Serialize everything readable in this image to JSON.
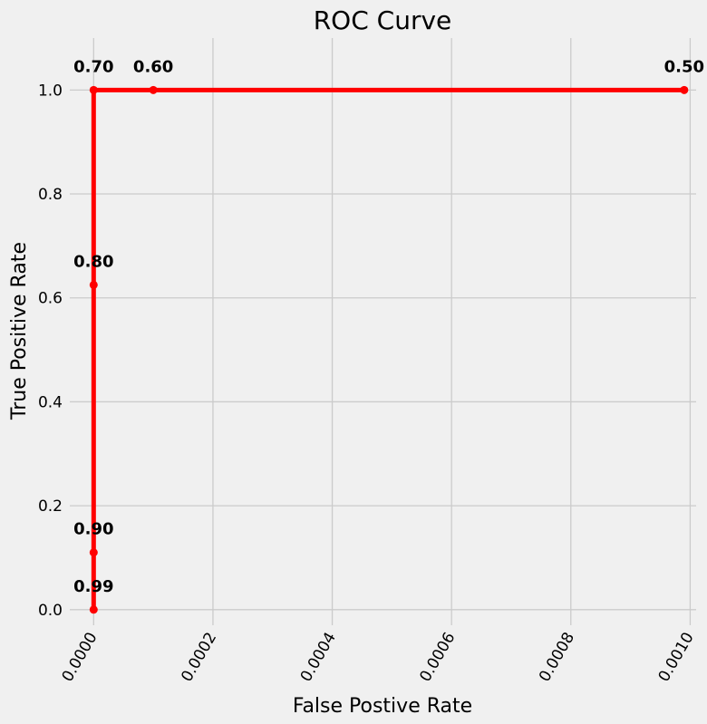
{
  "chart_data": {
    "type": "line",
    "title": "ROC Curve",
    "xlabel": "False Postive Rate",
    "ylabel": "True Positive Rate",
    "xlim": [
      -4e-05,
      0.00101
    ],
    "ylim": [
      -0.03,
      1.1
    ],
    "x_ticks": [
      0.0,
      0.0002,
      0.0004,
      0.0006,
      0.0008,
      0.001
    ],
    "x_tick_labels": [
      "0.0000",
      "0.0002",
      "0.0004",
      "0.0006",
      "0.0008",
      "0.0010"
    ],
    "y_ticks": [
      0.0,
      0.2,
      0.4,
      0.6,
      0.8,
      1.0
    ],
    "y_tick_labels": [
      "0.0",
      "0.2",
      "0.4",
      "0.6",
      "0.8",
      "1.0"
    ],
    "grid": true,
    "line_color": "#ff0000",
    "background_color": "#f0f0f0",
    "series": [
      {
        "x": [
          0.0,
          0.0,
          0.0,
          0.0,
          0.0001,
          0.00099
        ],
        "y": [
          0.0,
          0.11,
          0.625,
          1.0,
          1.0,
          1.0
        ],
        "point_labels": [
          "0.99",
          "0.90",
          "0.80",
          "0.70",
          "0.60",
          "0.50"
        ]
      }
    ]
  }
}
